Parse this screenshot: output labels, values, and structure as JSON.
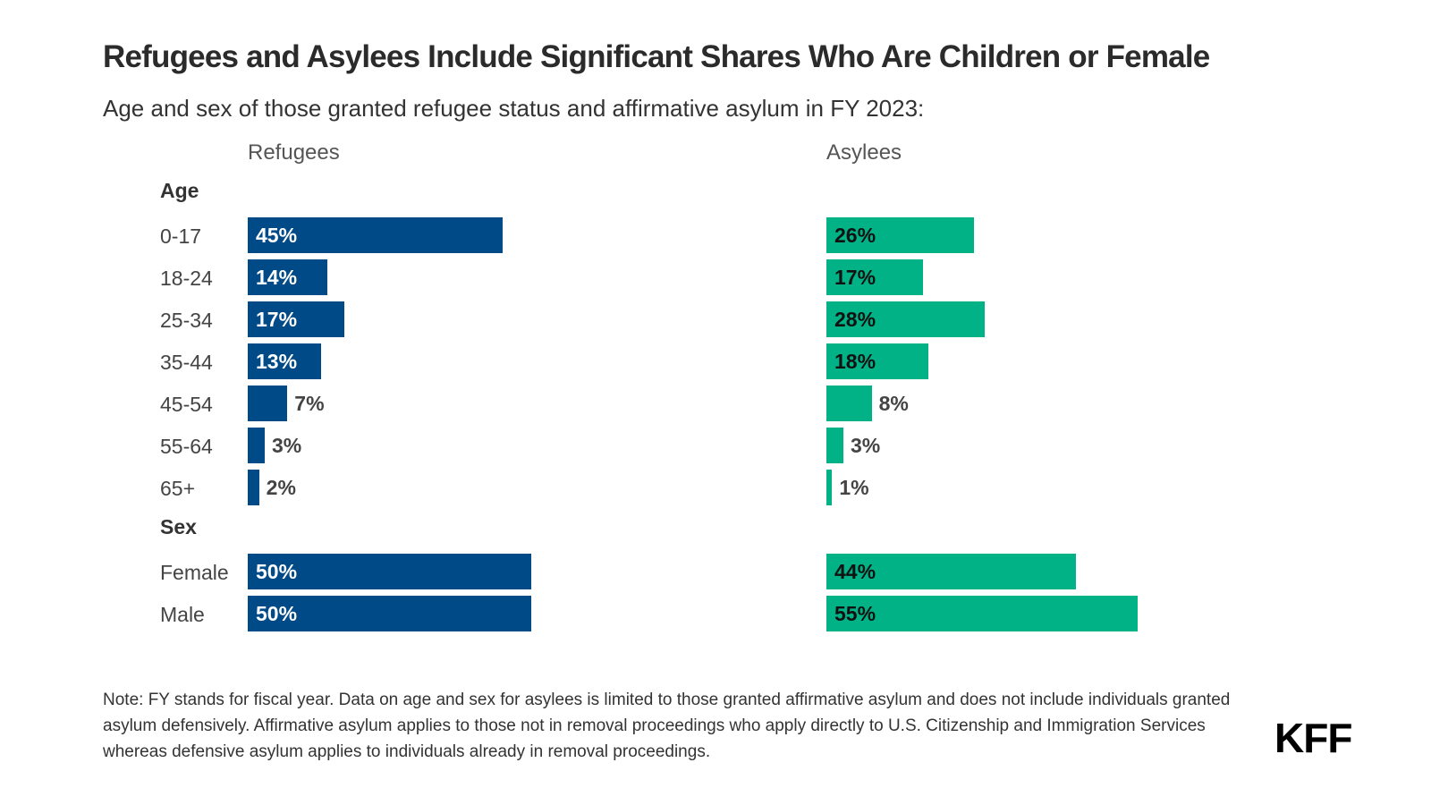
{
  "chart_data": {
    "type": "bar",
    "orientation": "horizontal",
    "title": "Refugees and Asylees Include Significant Shares Who Are Children or Female",
    "subtitle": "Age and sex of those granted refugee status and affirmative asylum in FY 2023:",
    "groups": [
      {
        "label": "Age",
        "categories": [
          "0-17",
          "18-24",
          "25-34",
          "35-44",
          "45-54",
          "55-64",
          "65+"
        ]
      },
      {
        "label": "Sex",
        "categories": [
          "Female",
          "Male"
        ]
      }
    ],
    "panels": [
      {
        "name": "Refugees",
        "color": "#004a87",
        "values": [
          45,
          14,
          17,
          13,
          7,
          3,
          2,
          50,
          50
        ]
      },
      {
        "name": "Asylees",
        "color": "#00b286",
        "values": [
          26,
          17,
          28,
          18,
          8,
          3,
          1,
          44,
          55
        ]
      }
    ],
    "unit": "%",
    "grid": false,
    "legend": "none"
  },
  "note": "Note: FY stands for fiscal year. Data on age and sex for asylees is limited to those granted affirmative asylum and does not include individuals granted asylum defensively. Affirmative asylum applies to those not in removal proceedings who apply directly to U.S. Citizenship and Immigration Services whereas defensive asylum applies to individuals already in removal proceedings.",
  "logo": "KFF"
}
